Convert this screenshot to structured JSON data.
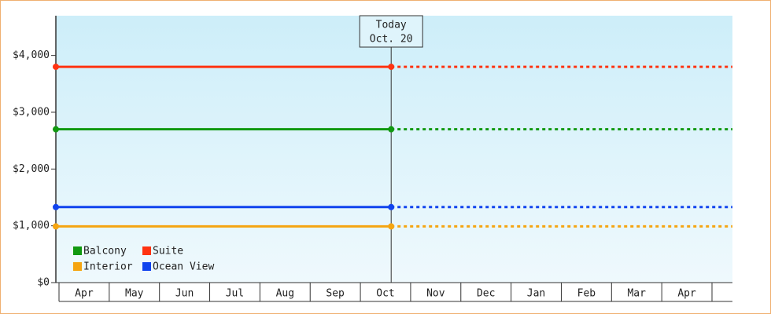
{
  "chart_data": {
    "type": "line",
    "categories": [
      "Apr",
      "May",
      "Jun",
      "Jul",
      "Aug",
      "Sep",
      "Oct",
      "Nov",
      "Dec",
      "Jan",
      "Feb",
      "Mar",
      "Apr"
    ],
    "series": [
      {
        "name": "Balcony",
        "color": "#119911",
        "values": [
          2700,
          2700,
          2700,
          2700,
          2700,
          2700,
          2700,
          2700,
          2700,
          2700,
          2700,
          2700,
          2700
        ]
      },
      {
        "name": "Suite",
        "color": "#ff3311",
        "values": [
          3800,
          3800,
          3800,
          3800,
          3800,
          3800,
          3800,
          3800,
          3800,
          3800,
          3800,
          3800,
          3800
        ]
      },
      {
        "name": "Interior",
        "color": "#f5a511",
        "values": [
          990,
          990,
          990,
          990,
          990,
          990,
          990,
          990,
          990,
          990,
          990,
          990,
          990
        ]
      },
      {
        "name": "Ocean View",
        "color": "#1144ee",
        "values": [
          1330,
          1330,
          1330,
          1330,
          1330,
          1330,
          1330,
          1330,
          1330,
          1330,
          1330,
          1330,
          1330
        ]
      }
    ],
    "ylim": [
      0,
      4700
    ],
    "yticks": [
      {
        "value": 0,
        "label": "$0"
      },
      {
        "value": 1000,
        "label": "$1,000"
      },
      {
        "value": 2000,
        "label": "$2,000"
      },
      {
        "value": 3000,
        "label": "$3,000"
      },
      {
        "value": 4000,
        "label": "$4,000"
      }
    ],
    "annotation": {
      "title": "Today",
      "date": "Oct. 20"
    },
    "legend": "lower left"
  }
}
